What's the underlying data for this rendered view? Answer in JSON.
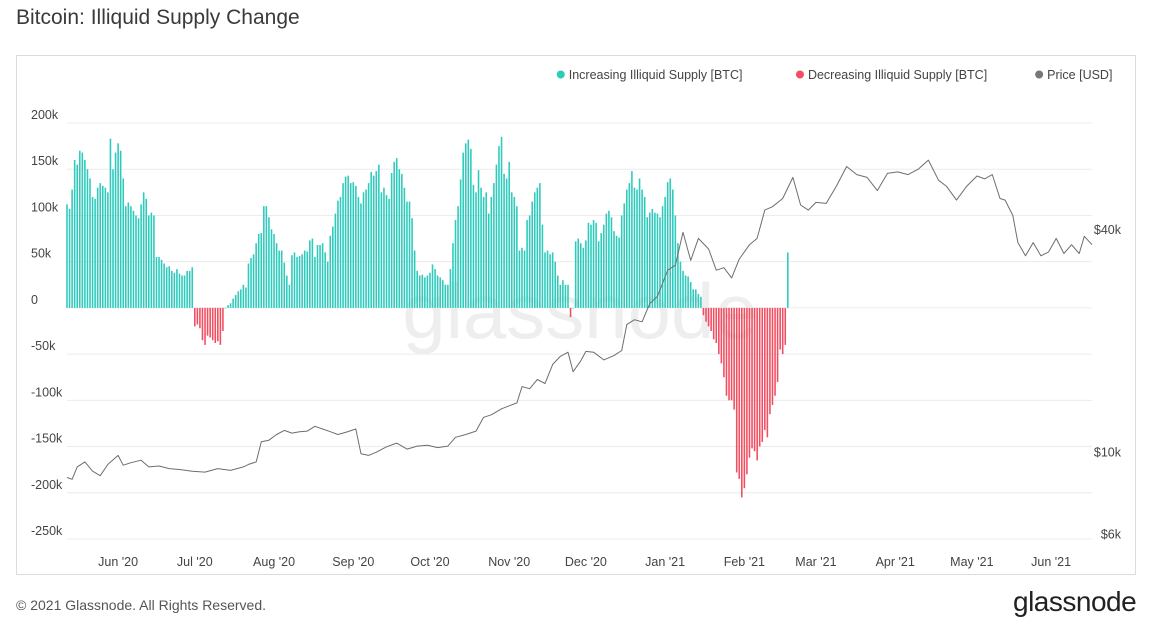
{
  "title": "Bitcoin: Illiquid Supply Change",
  "footer": {
    "copyright": "© 2021 Glassnode. All Rights Reserved.",
    "logo": "glassnode"
  },
  "watermark": "glassnode",
  "colors": {
    "increase": "#2ecbbd",
    "decrease": "#f24e62",
    "price": "#6e6e6e"
  },
  "chart_data": {
    "type": "bar",
    "title": "Bitcoin: Illiquid Supply Change",
    "legend_position": "top-right",
    "grid": true,
    "legend": [
      {
        "label": "Increasing Illiquid Supply [BTC]",
        "color": "#2ecbbd"
      },
      {
        "label": "Decreasing Illiquid Supply [BTC]",
        "color": "#f24e62"
      },
      {
        "label": "Price [USD]",
        "color": "#777777"
      }
    ],
    "ylim": [
      -250000,
      200000
    ],
    "yticks": [
      {
        "value": 200000,
        "label": "200k"
      },
      {
        "value": 150000,
        "label": "150k"
      },
      {
        "value": 100000,
        "label": "100k"
      },
      {
        "value": 50000,
        "label": "50k"
      },
      {
        "value": 0,
        "label": "0"
      },
      {
        "value": -50000,
        "label": "-50k"
      },
      {
        "value": -100000,
        "label": "-100k"
      },
      {
        "value": -150000,
        "label": "-150k"
      },
      {
        "value": -200000,
        "label": "-200k"
      },
      {
        "value": -250000,
        "label": "-250k"
      }
    ],
    "y2_scale": "log",
    "y2lim": [
      6000,
      80000
    ],
    "y2ticks": [
      {
        "value": 40000,
        "label": "$40k"
      },
      {
        "value": 10000,
        "label": "$10k"
      },
      {
        "value": 6000,
        "label": "$6k"
      }
    ],
    "x_start": "2020-05-12",
    "x_end": "2021-06-17",
    "xticks": [
      {
        "date": "2020-06-01",
        "label": "Jun '20"
      },
      {
        "date": "2020-07-01",
        "label": "Jul '20"
      },
      {
        "date": "2020-08-01",
        "label": "Aug '20"
      },
      {
        "date": "2020-09-01",
        "label": "Sep '20"
      },
      {
        "date": "2020-10-01",
        "label": "Oct '20"
      },
      {
        "date": "2020-11-01",
        "label": "Nov '20"
      },
      {
        "date": "2020-12-01",
        "label": "Dec '20"
      },
      {
        "date": "2021-01-01",
        "label": "Jan '21"
      },
      {
        "date": "2021-02-01",
        "label": "Feb '21"
      },
      {
        "date": "2021-03-01",
        "label": "Mar '21"
      },
      {
        "date": "2021-04-01",
        "label": "Apr '21"
      },
      {
        "date": "2021-05-01",
        "label": "May '21"
      },
      {
        "date": "2021-06-01",
        "label": "Jun '21"
      }
    ],
    "series": [
      {
        "name": "Illiquid Supply Change [BTC]",
        "start": "2020-05-12",
        "step_days": 1,
        "values": [
          112000,
          107000,
          128000,
          160000,
          155000,
          170000,
          168000,
          160000,
          150000,
          140000,
          120000,
          118000,
          130000,
          135000,
          132000,
          130000,
          125000,
          183000,
          150000,
          168000,
          178000,
          170000,
          140000,
          110000,
          114000,
          110000,
          105000,
          100000,
          97000,
          112000,
          125000,
          118000,
          100000,
          103000,
          100000,
          55000,
          55000,
          52000,
          48000,
          44000,
          45000,
          40000,
          38000,
          42000,
          37000,
          35000,
          35000,
          40000,
          40000,
          44000,
          -20000,
          -18000,
          -22000,
          -35000,
          -40000,
          -30000,
          -32000,
          -35000,
          -38000,
          -36000,
          -40000,
          -25000,
          0,
          3000,
          5000,
          10000,
          14000,
          18000,
          20000,
          25000,
          22000,
          48000,
          54000,
          58000,
          70000,
          80000,
          81000,
          110000,
          110000,
          98000,
          85000,
          80000,
          70000,
          62000,
          62000,
          49000,
          35000,
          25000,
          57000,
          60000,
          55000,
          56000,
          58000,
          62000,
          61000,
          73000,
          75000,
          55000,
          68000,
          68000,
          70000,
          60000,
          50000,
          78000,
          88000,
          102000,
          116000,
          120000,
          135000,
          142000,
          143000,
          135000,
          136000,
          132000,
          120000,
          113000,
          125000,
          128000,
          135000,
          147000,
          143000,
          148000,
          155000,
          125000,
          130000,
          122000,
          118000,
          146000,
          158000,
          162000,
          150000,
          145000,
          130000,
          115000,
          115000,
          97000,
          62000,
          40000,
          35000,
          36000,
          33000,
          35000,
          38000,
          47000,
          42000,
          35000,
          33000,
          30000,
          25000,
          25000,
          42000,
          70000,
          95000,
          110000,
          139000,
          168000,
          178000,
          182000,
          172000,
          133000,
          125000,
          149000,
          130000,
          120000,
          125000,
          102000,
          120000,
          135000,
          155000,
          175000,
          185000,
          145000,
          140000,
          158000,
          125000,
          120000,
          110000,
          62000,
          65000,
          62000,
          95000,
          100000,
          115000,
          125000,
          130000,
          135000,
          90000,
          60000,
          62000,
          58000,
          60000,
          50000,
          35000,
          25000,
          30000,
          25000,
          25000,
          -10000,
          0,
          72000,
          75000,
          70000,
          65000,
          73000,
          92000,
          90000,
          95000,
          92000,
          72000,
          81000,
          90000,
          102000,
          105000,
          98000,
          83000,
          78000,
          76000,
          100000,
          113000,
          128000,
          135000,
          148000,
          130000,
          128000,
          140000,
          128000,
          120000,
          98000,
          103000,
          107000,
          103000,
          102000,
          98000,
          110000,
          120000,
          136000,
          140000,
          128000,
          100000,
          70000,
          50000,
          40000,
          35000,
          34000,
          28000,
          20000,
          20000,
          15000,
          12000,
          -8000,
          -15000,
          -20000,
          -25000,
          -34000,
          -38000,
          -50000,
          -60000,
          -75000,
          -95000,
          -100000,
          -100000,
          -110000,
          -178000,
          -185000,
          -205000,
          -195000,
          -180000,
          -162000,
          -152000,
          -155000,
          -165000,
          -150000,
          -145000,
          -132000,
          -140000,
          -115000,
          -105000,
          -95000,
          -80000,
          -45000,
          -50000,
          -40000,
          60000
        ]
      },
      {
        "name": "Price [USD]",
        "axis": "y2",
        "dates": [
          "2020-05-12",
          "2020-05-14",
          "2020-05-16",
          "2020-05-19",
          "2020-05-22",
          "2020-05-25",
          "2020-05-28",
          "2020-06-01",
          "2020-06-03",
          "2020-06-06",
          "2020-06-10",
          "2020-06-13",
          "2020-06-17",
          "2020-06-21",
          "2020-06-25",
          "2020-06-30",
          "2020-07-05",
          "2020-07-10",
          "2020-07-15",
          "2020-07-20",
          "2020-07-22",
          "2020-07-25",
          "2020-07-27",
          "2020-07-30",
          "2020-08-02",
          "2020-08-05",
          "2020-08-08",
          "2020-08-11",
          "2020-08-14",
          "2020-08-17",
          "2020-08-20",
          "2020-08-23",
          "2020-08-26",
          "2020-08-29",
          "2020-09-02",
          "2020-09-04",
          "2020-09-07",
          "2020-09-10",
          "2020-09-14",
          "2020-09-18",
          "2020-09-22",
          "2020-09-26",
          "2020-09-30",
          "2020-10-04",
          "2020-10-08",
          "2020-10-11",
          "2020-10-15",
          "2020-10-19",
          "2020-10-22",
          "2020-10-25",
          "2020-10-29",
          "2020-11-01",
          "2020-11-04",
          "2020-11-06",
          "2020-11-09",
          "2020-11-12",
          "2020-11-15",
          "2020-11-18",
          "2020-11-21",
          "2020-11-24",
          "2020-11-26",
          "2020-11-29",
          "2020-12-01",
          "2020-12-04",
          "2020-12-08",
          "2020-12-12",
          "2020-12-15",
          "2020-12-17",
          "2020-12-20",
          "2020-12-23",
          "2020-12-26",
          "2020-12-29",
          "2021-01-02",
          "2021-01-05",
          "2021-01-08",
          "2021-01-11",
          "2021-01-14",
          "2021-01-18",
          "2021-01-21",
          "2021-01-24",
          "2021-01-27",
          "2021-01-30",
          "2021-02-03",
          "2021-02-06",
          "2021-02-09",
          "2021-02-12",
          "2021-02-16",
          "2021-02-20",
          "2021-02-23",
          "2021-02-26",
          "2021-03-01",
          "2021-03-05",
          "2021-03-09",
          "2021-03-13",
          "2021-03-17",
          "2021-03-21",
          "2021-03-25",
          "2021-03-29",
          "2021-04-02",
          "2021-04-06",
          "2021-04-10",
          "2021-04-14",
          "2021-04-18",
          "2021-04-21",
          "2021-04-25",
          "2021-04-29",
          "2021-05-03",
          "2021-05-06",
          "2021-05-09",
          "2021-05-12",
          "2021-05-14",
          "2021-05-17",
          "2021-05-19",
          "2021-05-22",
          "2021-05-25",
          "2021-05-28",
          "2021-05-31",
          "2021-06-03",
          "2021-06-06",
          "2021-06-09",
          "2021-06-12",
          "2021-06-14",
          "2021-06-17"
        ],
        "values": [
          8800,
          8700,
          9400,
          9700,
          9150,
          8900,
          9550,
          10100,
          9500,
          9650,
          9800,
          9400,
          9450,
          9300,
          9250,
          9150,
          9100,
          9300,
          9200,
          9400,
          9550,
          9700,
          11000,
          11100,
          11500,
          11800,
          11600,
          11700,
          11750,
          12100,
          11900,
          11700,
          11500,
          11650,
          11900,
          10200,
          10100,
          10300,
          10650,
          10900,
          10500,
          10700,
          10750,
          10600,
          10700,
          11300,
          11500,
          11750,
          12800,
          13000,
          13500,
          13750,
          14000,
          15500,
          15300,
          16200,
          15800,
          17800,
          18700,
          19200,
          17000,
          18200,
          19300,
          19200,
          18300,
          18800,
          19400,
          22800,
          23500,
          23200,
          26000,
          27200,
          32000,
          33000,
          40500,
          34000,
          39000,
          36500,
          32000,
          32500,
          30500,
          34300,
          37500,
          39000,
          46500,
          47500,
          50000,
          57000,
          48000,
          46500,
          48800,
          48500,
          54000,
          61000,
          58000,
          57000,
          52500,
          58500,
          59000,
          58000,
          60000,
          63500,
          56000,
          54000,
          49500,
          54000,
          57500,
          56500,
          58000,
          50000,
          49500,
          45000,
          38000,
          35000,
          38000,
          35000,
          35800,
          39000,
          35500,
          37500,
          35500,
          39500,
          37500
        ]
      }
    ]
  }
}
